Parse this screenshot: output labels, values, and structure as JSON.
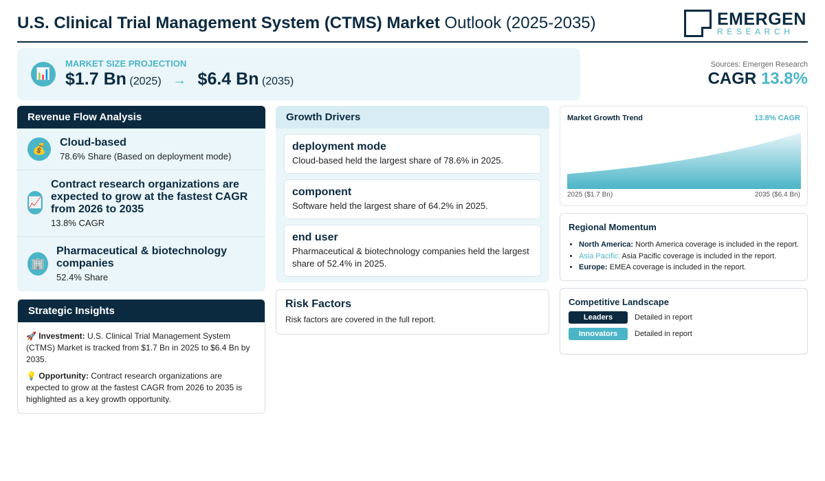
{
  "header": {
    "title_bold": "U.S. Clinical Trial Management System (CTMS) Market",
    "title_rest": " Outlook (2025-2035)",
    "logo_word": "EMERGEN",
    "logo_sub": "RESEARCH"
  },
  "projection": {
    "icon": "chart-icon",
    "label": "MARKET SIZE PROJECTION",
    "start_value": "$1.7 Bn",
    "start_year": "(2025)",
    "arrow": "→",
    "end_value": "$6.4 Bn",
    "end_year": "(2035)"
  },
  "sources": "Sources: Emergen Research",
  "cagr": {
    "label": "CAGR ",
    "value": "13.8%"
  },
  "revenue": {
    "title": "Revenue Flow Analysis",
    "items": [
      {
        "icon": "money-bag-icon",
        "title": "Cloud-based",
        "sub": "78.6% Share (Based on deployment mode)"
      },
      {
        "icon": "trend-up-icon",
        "title": "Contract research organizations are expected to grow at the fastest CAGR from 2026 to 2035",
        "sub": "13.8% CAGR"
      },
      {
        "icon": "building-icon",
        "title": "Pharmaceutical & biotechnology companies",
        "sub": "52.4% Share"
      }
    ]
  },
  "insights": {
    "title": "Strategic Insights",
    "investment_label": "Investment:",
    "investment_text": " U.S. Clinical Trial Management System (CTMS) Market is tracked from $1.7 Bn in 2025 to $6.4 Bn by 2035.",
    "opportunity_label": "Opportunity:",
    "opportunity_text": " Contract research organizations are expected to grow at the fastest CAGR from 2026 to 2035 is highlighted as a key growth opportunity."
  },
  "drivers": {
    "title": "Growth Drivers",
    "cards": [
      {
        "title": "deployment mode",
        "text": "Cloud-based held the largest share of 78.6% in 2025."
      },
      {
        "title": "component",
        "text": "Software held the largest share of 64.2% in 2025."
      },
      {
        "title": "end user",
        "text": "Pharmaceutical & biotechnology companies held the largest share of 52.4% in 2025."
      }
    ]
  },
  "risk": {
    "title": "Risk Factors",
    "text": "Risk factors are covered in the full report."
  },
  "trend": {
    "title": "Market Growth Trend",
    "cagr": "13.8% CAGR",
    "start_label": "2025 ($1.7 Bn)",
    "end_label": "2035 ($6.4 Bn)",
    "colors": {
      "fill_top": "#e6f4f8",
      "fill_bottom": "#4bb5c8"
    }
  },
  "chart_data": {
    "type": "area",
    "x": [
      2025,
      2035
    ],
    "values": [
      1.7,
      6.4
    ],
    "xlabel": "",
    "ylabel": ""
  },
  "regional": {
    "title": "Regional Momentum",
    "items": [
      {
        "name": "North America:",
        "text": " North America coverage is included in the report."
      },
      {
        "name": "Asia Pacific:",
        "text": " Asia Pacific coverage is included in the report."
      },
      {
        "name": "Europe:",
        "text": " EMEA coverage is included in the report."
      }
    ]
  },
  "competitive": {
    "title": "Competitive Landscape",
    "rows": [
      {
        "badge": "Leaders",
        "text": "Detailed in report",
        "color": "#0b2a40"
      },
      {
        "badge": "Innovators",
        "text": "Detailed in report",
        "color": "#4bb5c8"
      }
    ]
  }
}
